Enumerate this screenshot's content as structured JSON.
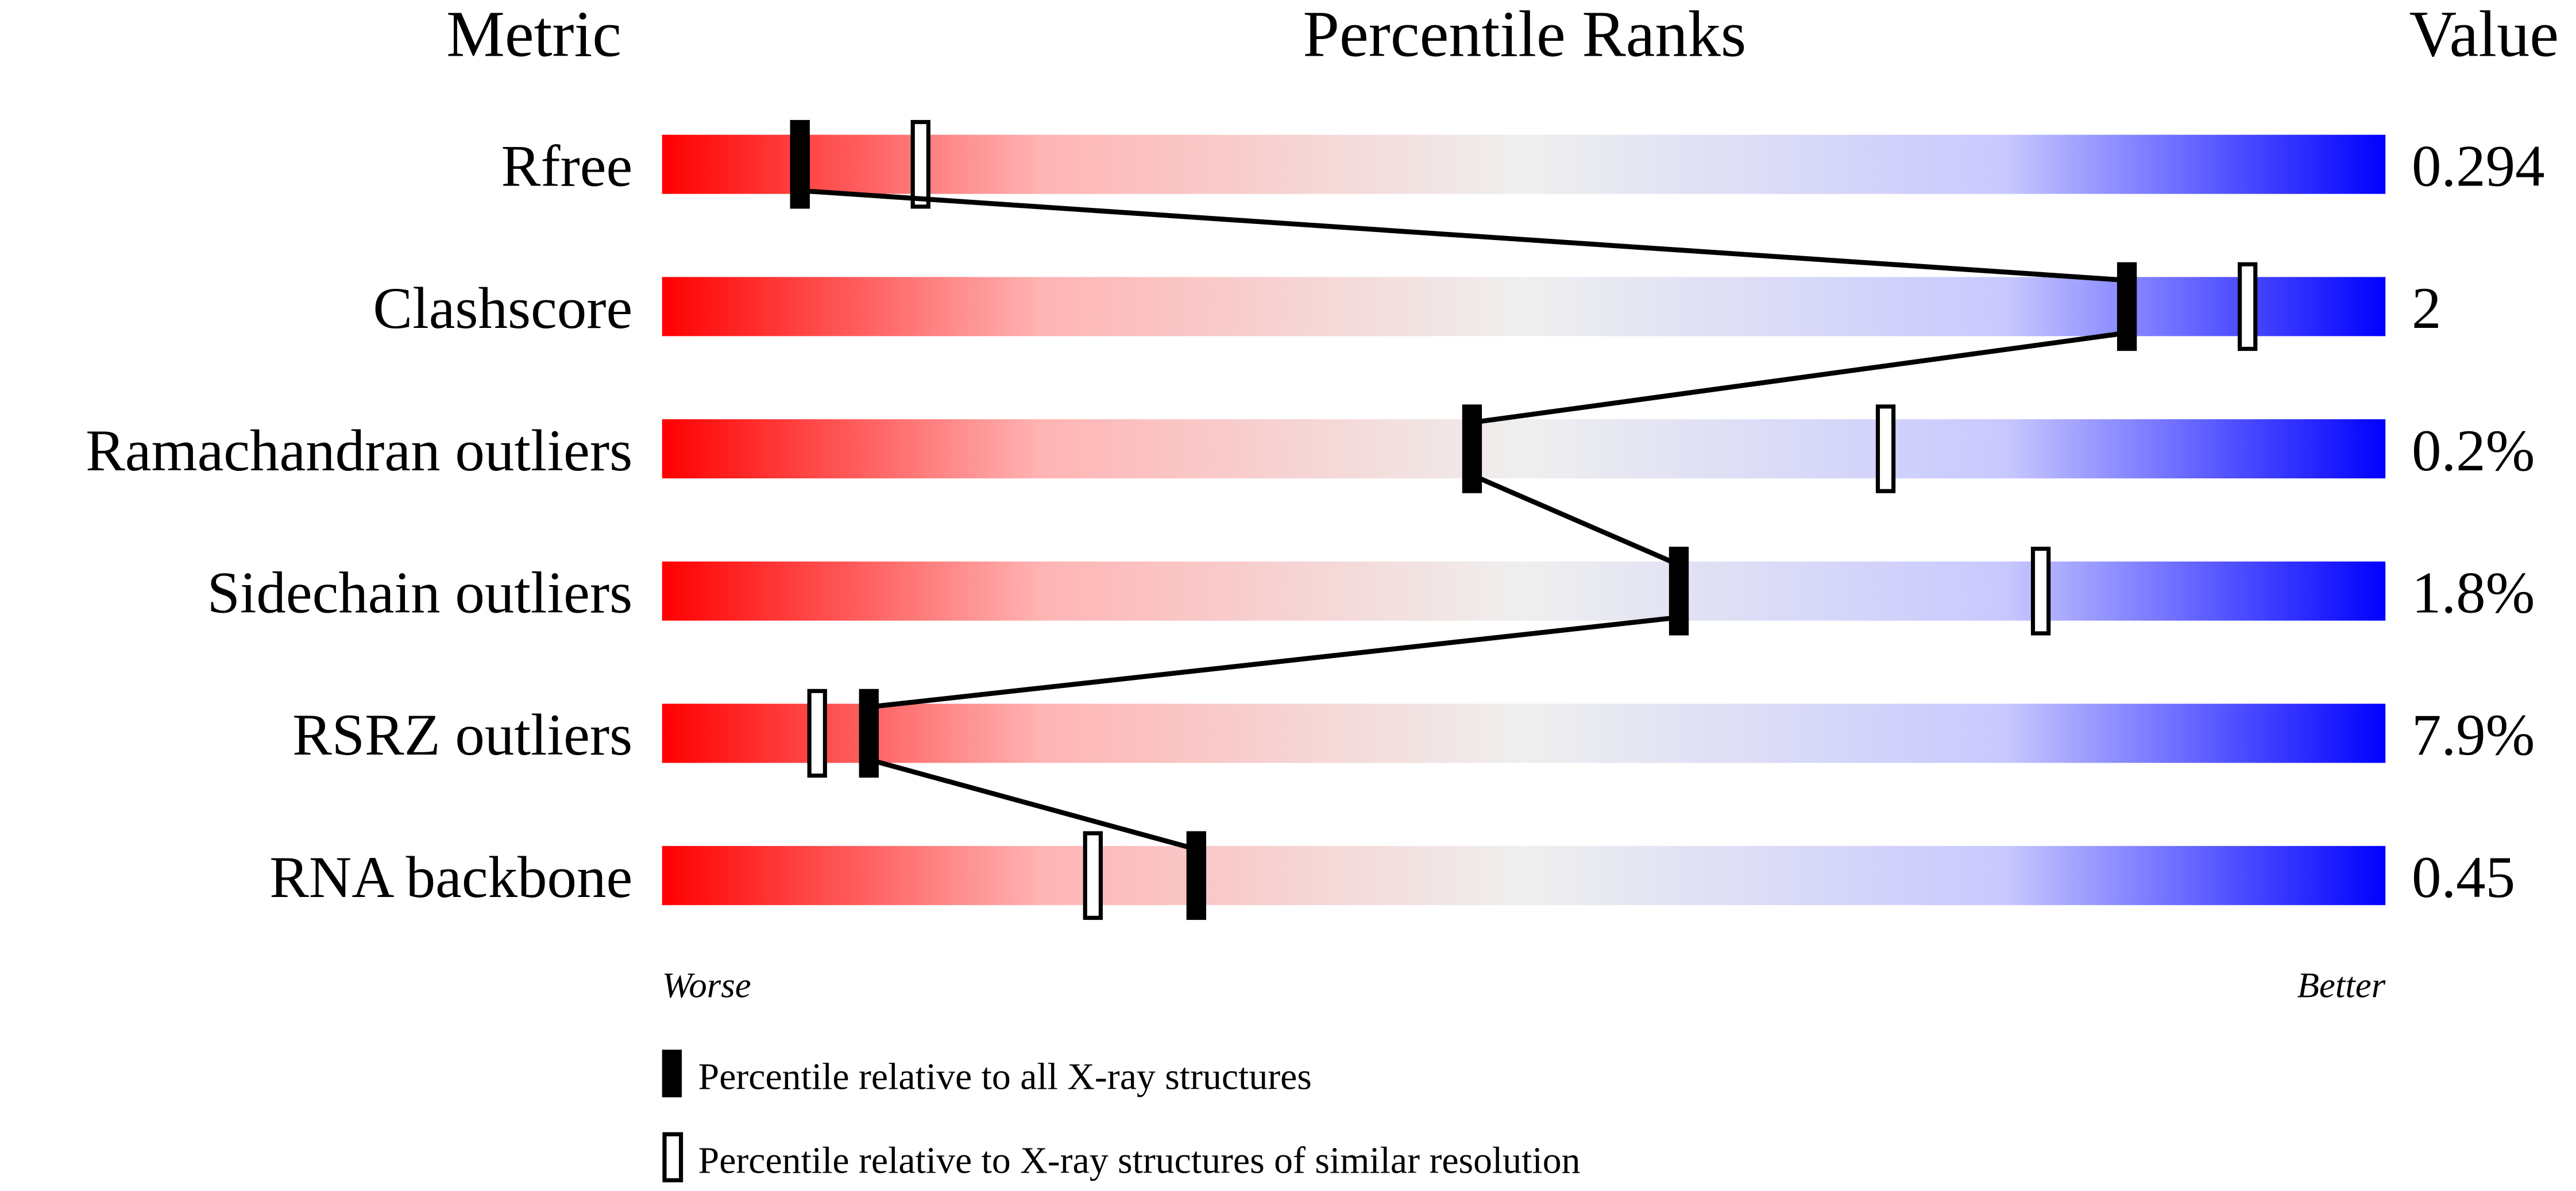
{
  "chart_data": {
    "type": "percentile-slider",
    "headers": {
      "metric": "Metric",
      "ranks": "Percentile Ranks",
      "value": "Value"
    },
    "xlim": [
      0,
      100
    ],
    "axis_labels": {
      "left": "Worse",
      "right": "Better"
    },
    "gradient_colors": [
      "#ff0000",
      "#f0f0f0",
      "#0000ff"
    ],
    "rows": [
      {
        "metric": "Rfree",
        "value": "0.294",
        "percentile_all": 8,
        "percentile_similar": 15
      },
      {
        "metric": "Clashscore",
        "value": "2",
        "percentile_all": 85,
        "percentile_similar": 92
      },
      {
        "metric": "Ramachandran outliers",
        "value": "0.2%",
        "percentile_all": 47,
        "percentile_similar": 71
      },
      {
        "metric": "Sidechain outliers",
        "value": "1.8%",
        "percentile_all": 59,
        "percentile_similar": 80
      },
      {
        "metric": "RSRZ outliers",
        "value": "7.9%",
        "percentile_all": 12,
        "percentile_similar": 9
      },
      {
        "metric": "RNA backbone",
        "value": "0.45",
        "percentile_all": 31,
        "percentile_similar": 25
      }
    ],
    "legend": [
      {
        "marker": "filled",
        "label": "Percentile relative to all X-ray structures"
      },
      {
        "marker": "open",
        "label": "Percentile relative to X-ray structures of similar resolution"
      }
    ]
  }
}
